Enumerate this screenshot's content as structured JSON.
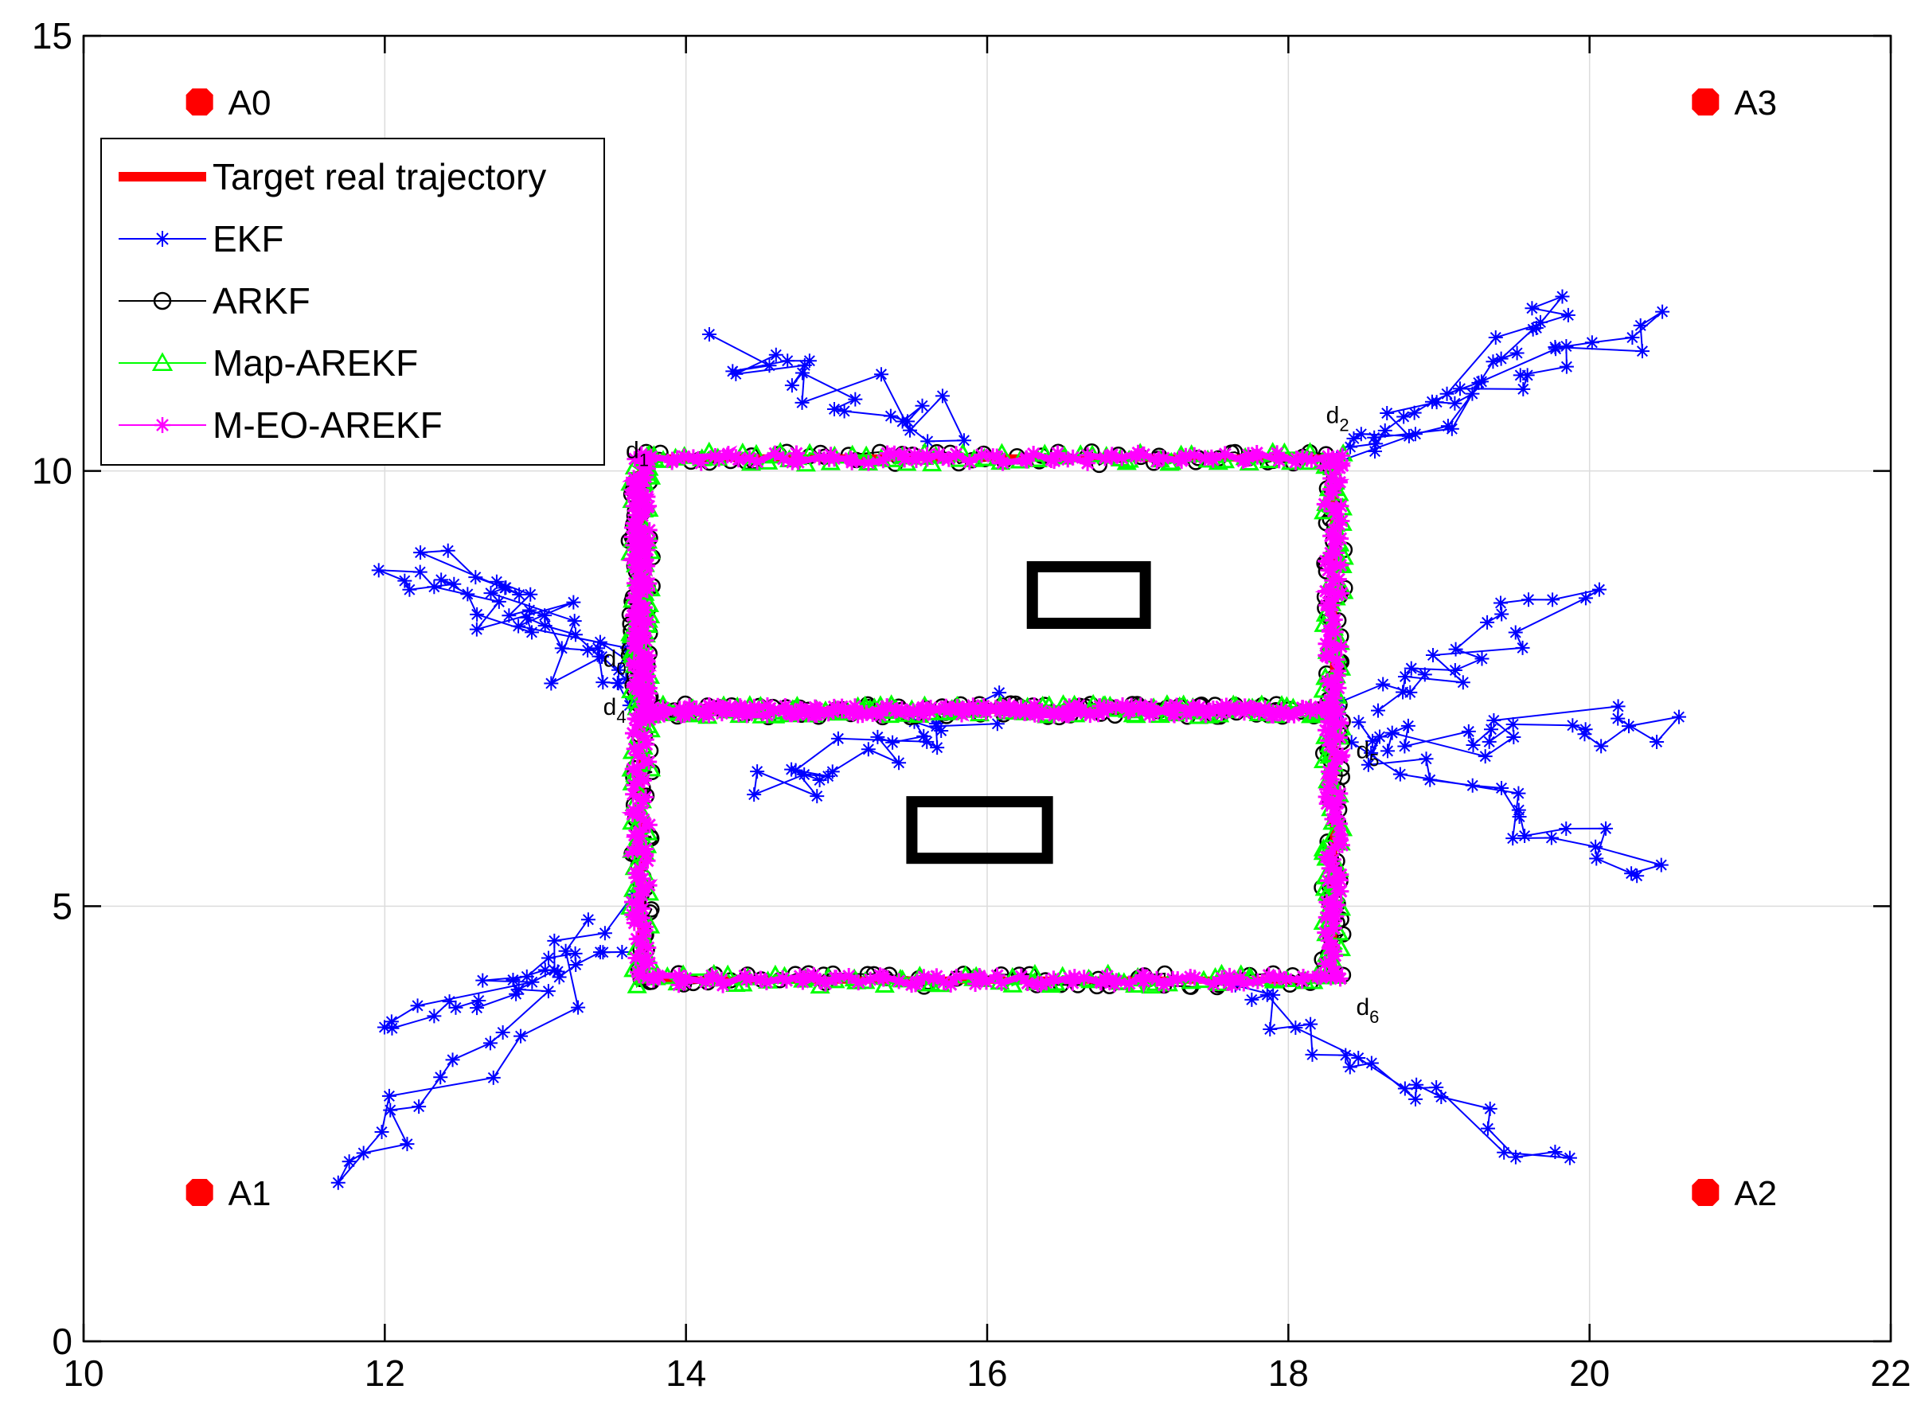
{
  "chart_data": {
    "type": "line",
    "title": "",
    "xlabel": "",
    "ylabel": "",
    "xlim": [
      10,
      22
    ],
    "ylim": [
      0,
      15
    ],
    "xticks": [
      "10",
      "12",
      "14",
      "16",
      "18",
      "20",
      "22"
    ],
    "yticks": [
      "0",
      "5",
      "10",
      "15"
    ],
    "grid": true,
    "legend_position": "top-left",
    "colors": {
      "target": "#ff0000",
      "ekf": "#0000ff",
      "arkf": "#000000",
      "map_arekf": "#00ff00",
      "m_eo_arekf": "#ff00ff",
      "obstacle": "#000000"
    },
    "anchors": [
      {
        "name": "A0",
        "x": 10.77,
        "y": 14.24
      },
      {
        "name": "A1",
        "x": 10.77,
        "y": 1.71
      },
      {
        "name": "A2",
        "x": 20.77,
        "y": 1.71
      },
      {
        "name": "A3",
        "x": 20.77,
        "y": 14.24
      }
    ],
    "series": [
      {
        "name": "Target real trajectory",
        "marker": "none",
        "x": [
          13.7,
          18.3,
          18.3,
          13.7,
          13.7,
          13.7,
          18.3,
          18.3,
          13.7
        ],
        "y": [
          10.15,
          10.15,
          7.25,
          7.25,
          10.15,
          4.15,
          4.15,
          7.25,
          7.25
        ]
      },
      {
        "name": "EKF",
        "marker": "asterisk"
      },
      {
        "name": "ARKF",
        "marker": "circle"
      },
      {
        "name": "Map-AREKF",
        "marker": "triangle"
      },
      {
        "name": "M-EO-AREKF",
        "marker": "asterisk"
      }
    ],
    "ekf_outlier_clusters": [
      {
        "from": [
          14.3,
          11.45
        ],
        "to": [
          15.6,
          10.45
        ]
      },
      {
        "from": [
          18.4,
          10.2
        ],
        "to": [
          20.4,
          11.8
        ]
      },
      {
        "from": [
          18.4,
          10.2
        ],
        "to": [
          19.9,
          11.9
        ]
      },
      {
        "from": [
          13.6,
          7.7
        ],
        "to": [
          12.1,
          8.95
        ]
      },
      {
        "from": [
          13.6,
          7.4
        ],
        "to": [
          12.5,
          9.0
        ]
      },
      {
        "from": [
          18.4,
          7.3
        ],
        "to": [
          19.9,
          8.6
        ]
      },
      {
        "from": [
          18.5,
          7.0
        ],
        "to": [
          20.5,
          7.0
        ]
      },
      {
        "from": [
          18.4,
          6.9
        ],
        "to": [
          20.4,
          5.4
        ]
      },
      {
        "from": [
          13.5,
          5.0
        ],
        "to": [
          11.85,
          1.9
        ]
      },
      {
        "from": [
          13.5,
          4.5
        ],
        "to": [
          12.1,
          3.7
        ]
      },
      {
        "from": [
          17.8,
          4.0
        ],
        "to": [
          19.6,
          2.1
        ]
      },
      {
        "from": [
          15.9,
          7.2
        ],
        "to": [
          14.6,
          6.3
        ]
      }
    ],
    "obstacles": [
      {
        "x": [
          16.3,
          17.05
        ],
        "y": [
          8.25,
          8.9
        ]
      },
      {
        "x": [
          15.5,
          16.4
        ],
        "y": [
          5.55,
          6.2
        ]
      }
    ],
    "annotations": [
      {
        "text": "d",
        "sub": "0",
        "x": 13.45,
        "y": 7.75
      },
      {
        "text": "d",
        "sub": "1",
        "x": 13.6,
        "y": 10.15
      },
      {
        "text": "d",
        "sub": "2",
        "x": 18.25,
        "y": 10.55
      },
      {
        "text": "d",
        "sub": "4",
        "x": 13.45,
        "y": 7.2
      },
      {
        "text": "d",
        "sub": "5",
        "x": 18.45,
        "y": 6.7
      },
      {
        "text": "d",
        "sub": "6",
        "x": 18.45,
        "y": 3.75
      }
    ]
  }
}
